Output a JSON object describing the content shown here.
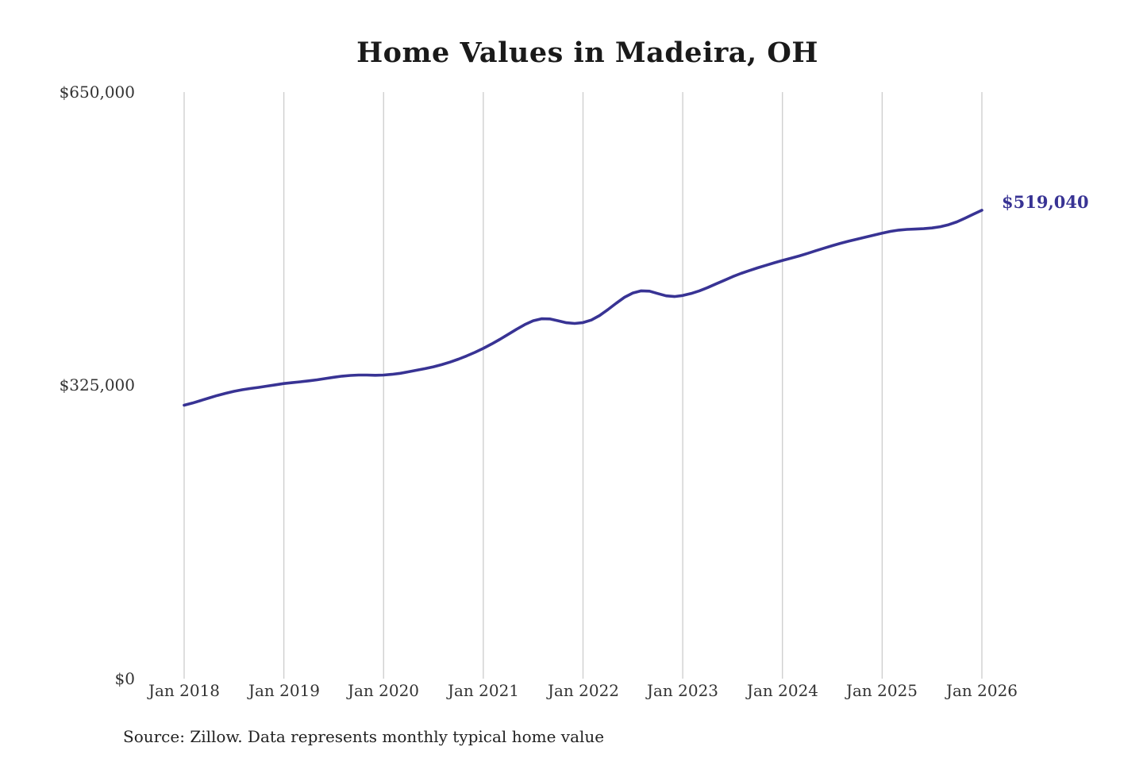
{
  "chart": {
    "end_label": "$519,040",
    "line_color": "#383394",
    "grid_color": "#cccccc",
    "title_color": "#1a1a1a",
    "axis_label_color": "#333333"
  },
  "chart_data": {
    "type": "line",
    "title": "Home Values in Madeira, OH",
    "xlabel": "",
    "ylabel": "",
    "ylim": [
      0,
      650000
    ],
    "y_tick_values": [
      0,
      325000,
      650000
    ],
    "y_tick_labels": [
      "$0",
      "$325,000",
      "$650,000"
    ],
    "x_tick_labels": [
      "Jan 2018",
      "Jan 2019",
      "Jan 2020",
      "Jan 2021",
      "Jan 2022",
      "Jan 2023",
      "Jan 2024",
      "Jan 2025",
      "Jan 2026"
    ],
    "grid": "vertical-only",
    "legend_position": "none",
    "annotation": {
      "text": "$519,040",
      "value": 519040,
      "position": "line-end"
    },
    "source": "Source: Zillow. Data represents monthly typical home value",
    "series": [
      {
        "name": "Monthly typical home value",
        "x_start": "Jan 2018",
        "x_end": "Jan 2026",
        "x_interval": "month",
        "values": [
          303000,
          305400,
          308200,
          311000,
          313800,
          316200,
          318400,
          320200,
          321600,
          322800,
          324200,
          325600,
          327000,
          328000,
          329000,
          330000,
          331200,
          332600,
          334000,
          335200,
          336000,
          336400,
          336400,
          336200,
          336400,
          337200,
          338400,
          340000,
          341800,
          343600,
          345600,
          348000,
          350800,
          354000,
          357600,
          361600,
          366000,
          370800,
          376000,
          381600,
          387200,
          392400,
          396600,
          398800,
          398600,
          396600,
          394400,
          393600,
          394600,
          397400,
          402400,
          409000,
          416000,
          422600,
          427400,
          429800,
          429400,
          426800,
          424200,
          423400,
          424600,
          426800,
          429800,
          433400,
          437400,
          441400,
          445400,
          449000,
          452200,
          455200,
          458000,
          460800,
          463400,
          465800,
          468400,
          471200,
          474200,
          477000,
          479800,
          482400,
          484800,
          487000,
          489200,
          491400,
          493600,
          495600,
          497000,
          497800,
          498200,
          498600,
          499400,
          500800,
          503000,
          506200,
          510400,
          514800,
          519040
        ]
      }
    ]
  }
}
